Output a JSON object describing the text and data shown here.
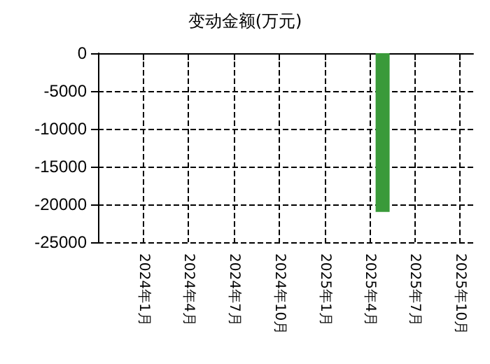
{
  "chart_data": {
    "type": "bar",
    "title": "变动金额(万元)",
    "x": [
      "2025-04-28"
    ],
    "series": [
      {
        "color": "#3a9a3a",
        "values": [
          -21000
        ]
      }
    ],
    "xlim": [
      "2023-10-01",
      "2025-10-28"
    ],
    "xticks": [
      {
        "value": "2024-01-01",
        "label": "2024年1月"
      },
      {
        "value": "2024-04-01",
        "label": "2024年4月"
      },
      {
        "value": "2024-07-01",
        "label": "2024年7月"
      },
      {
        "value": "2024-10-01",
        "label": "2024年10月"
      },
      {
        "value": "2025-01-01",
        "label": "2025年1月"
      },
      {
        "value": "2025-04-01",
        "label": "2025年4月"
      },
      {
        "value": "2025-07-01",
        "label": "2025年7月"
      },
      {
        "value": "2025-10-01",
        "label": "2025年10月"
      }
    ],
    "ylim": [
      -25000,
      0
    ],
    "yticks": [
      -25000,
      -20000,
      -15000,
      -10000,
      -5000,
      0
    ],
    "grid": true
  }
}
